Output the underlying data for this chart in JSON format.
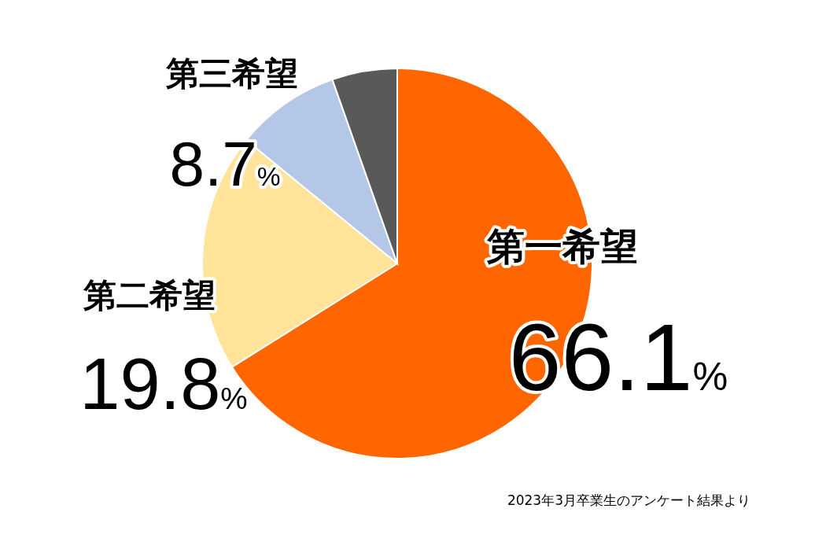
{
  "chart_data": {
    "type": "pie",
    "categories": [
      "第一希望",
      "第二希望",
      "第三希望",
      null
    ],
    "values": [
      66.1,
      19.8,
      8.7,
      5.4
    ],
    "colors": [
      "#ff6600",
      "#ffe499",
      "#b4c7e7",
      "#595959"
    ],
    "value_labels": [
      "66.1%",
      "19.8%",
      "8.7%",
      null
    ],
    "annotations": [
      "2023年3月卒業生のアンケート結果より"
    ]
  }
}
